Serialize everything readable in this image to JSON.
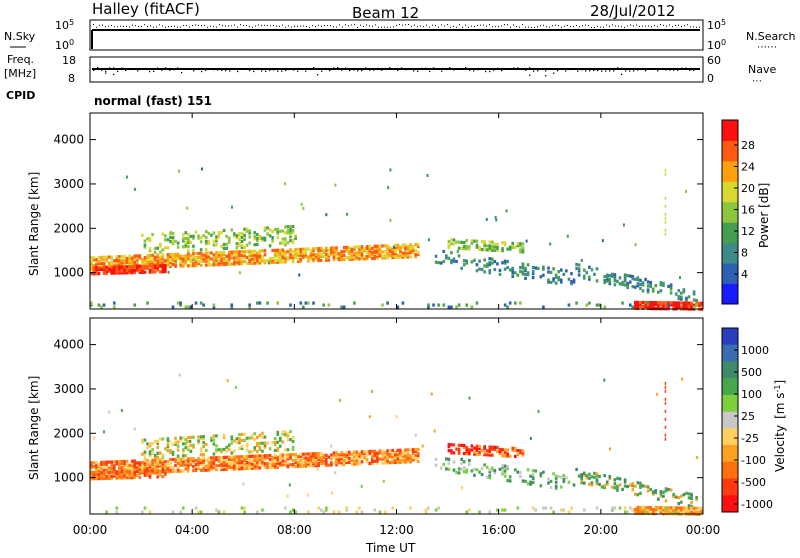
{
  "header": {
    "station": "Halley (fitACF)",
    "beam": "Beam 12",
    "date": "28/Jul/2012"
  },
  "top_panels": {
    "nsky": {
      "left_label": "N.Sky",
      "right_label": "N.Search",
      "tick_top_base": "10",
      "tick_top_exp": "5",
      "tick_bottom_base": "10",
      "tick_bottom_exp": "0"
    },
    "freq": {
      "left_label_1": "Freq.",
      "left_label_2": "[MHz]",
      "left_ticks": [
        "18",
        "8"
      ],
      "right_label": "Nave",
      "right_ticks": [
        "60",
        "0"
      ]
    },
    "cpid": {
      "label": "CPID",
      "mode_text": "normal (fast) 151"
    }
  },
  "x_axis": {
    "label": "Time UT",
    "ticks": [
      "00:00",
      "04:00",
      "08:00",
      "12:00",
      "16:00",
      "20:00",
      "00:00"
    ]
  },
  "chart_data": [
    {
      "type": "heatmap",
      "title": "Power",
      "ylabel": "Slant Range [km]",
      "xlabel": "Time UT",
      "ylim": [
        180,
        4600
      ],
      "xlim": [
        0,
        24
      ],
      "y_ticks": [
        "1000",
        "2000",
        "3000",
        "4000"
      ],
      "colorbar": {
        "label": "Power [dB]",
        "ticks": [
          "28",
          "24",
          "20",
          "16",
          "12",
          "8",
          "4"
        ],
        "colors_low_to_high": [
          "#1a1aff",
          "#2d5fb5",
          "#3e8a8a",
          "#44a050",
          "#8cc63c",
          "#d8d830",
          "#ffa010",
          "#ff5a10",
          "#ff1010"
        ]
      }
    },
    {
      "type": "heatmap",
      "title": "Velocity",
      "ylabel": "Slant Range [km]",
      "xlabel": "Time UT",
      "ylim": [
        180,
        4600
      ],
      "xlim": [
        0,
        24
      ],
      "y_ticks": [
        "1000",
        "2000",
        "3000",
        "4000"
      ],
      "colorbar": {
        "label_main": "Velocity",
        "label_unit": "[m s",
        "label_exp": "-1",
        "label_close": "]",
        "ticks": [
          "1000",
          "500",
          "100",
          "25",
          "-25",
          "-100",
          "-500",
          "-1000"
        ],
        "colors_top_to_bottom": [
          "#2a3fbf",
          "#3a6cb0",
          "#3e8a6a",
          "#46a84a",
          "#7dd03c",
          "#c8c8c8",
          "#ffd060",
          "#ffa020",
          "#ff7010",
          "#ff3a10",
          "#ff1010"
        ]
      }
    }
  ]
}
